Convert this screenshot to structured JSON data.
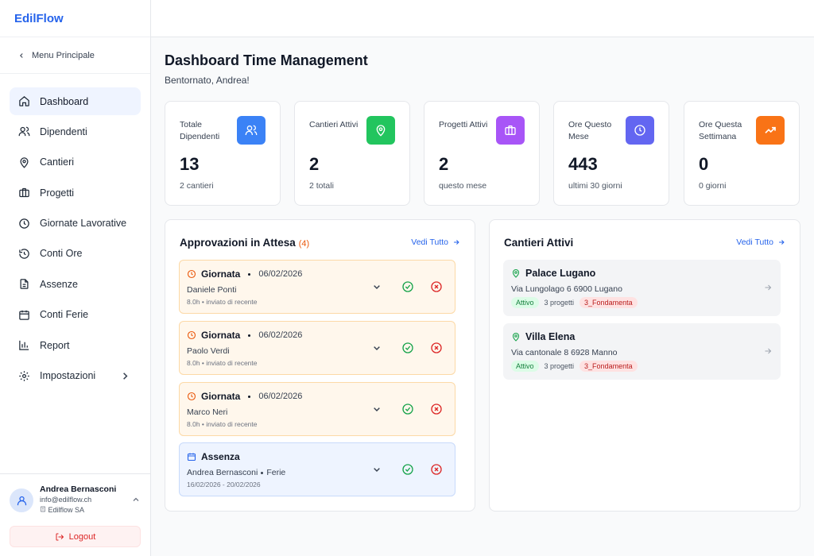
{
  "app": {
    "brand": "EdilFlow"
  },
  "sidebar": {
    "back_label": "Menu Principale",
    "items": [
      {
        "label": "Dashboard",
        "icon": "home-icon",
        "active": true
      },
      {
        "label": "Dipendenti",
        "icon": "users-icon"
      },
      {
        "label": "Cantieri",
        "icon": "map-pin-icon"
      },
      {
        "label": "Progetti",
        "icon": "briefcase-icon"
      },
      {
        "label": "Giornate Lavorative",
        "icon": "clock-icon"
      },
      {
        "label": "Conti Ore",
        "icon": "history-icon"
      },
      {
        "label": "Assenze",
        "icon": "file-text-icon"
      },
      {
        "label": "Conti Ferie",
        "icon": "calendar-icon"
      },
      {
        "label": "Report",
        "icon": "bar-chart-icon"
      },
      {
        "label": "Impostazioni",
        "icon": "gear-icon"
      }
    ],
    "user": {
      "name": "Andrea Bernasconi",
      "email": "info@edilflow.ch",
      "company": "Edilflow SA"
    },
    "logout_label": "Logout"
  },
  "header": {
    "title": "Dashboard Time Management",
    "subtitle": "Bentornato, Andrea!"
  },
  "stats": [
    {
      "label": "Totale Dipendenti",
      "value": "13",
      "sub": "2 cantieri",
      "color": "#3b82f6",
      "icon": "users-icon"
    },
    {
      "label": "Cantieri Attivi",
      "value": "2",
      "sub": "2 totali",
      "color": "#22c55e",
      "icon": "map-pin-icon"
    },
    {
      "label": "Progetti Attivi",
      "value": "2",
      "sub": "questo mese",
      "color": "#a855f7",
      "icon": "briefcase-icon"
    },
    {
      "label": "Ore Questo Mese",
      "value": "443",
      "sub": "ultimi 30 giorni",
      "color": "#6366f1",
      "icon": "clock-icon"
    },
    {
      "label": "Ore Questa Settimana",
      "value": "0",
      "sub": "0 giorni",
      "color": "#f97316",
      "icon": "trending-up-icon"
    }
  ],
  "approvals": {
    "title": "Approvazioni in Attesa",
    "count": "(4)",
    "see_all": "Vedi Tutto",
    "items": [
      {
        "type": "Giornata",
        "date": "06/02/2026",
        "name": "Daniele Ponti",
        "meta": "8.0h • inviato di recente"
      },
      {
        "type": "Giornata",
        "date": "06/02/2026",
        "name": "Paolo Verdi",
        "meta": "8.0h • inviato di recente"
      },
      {
        "type": "Giornata",
        "date": "06/02/2026",
        "name": "Marco Neri",
        "meta": "8.0h • inviato di recente"
      },
      {
        "type": "Assenza",
        "name": "Andrea Bernasconi",
        "kind": "Ferie",
        "meta": "16/02/2026 - 20/02/2026"
      }
    ]
  },
  "sites": {
    "title": "Cantieri Attivi",
    "see_all": "Vedi Tutto",
    "items": [
      {
        "name": "Palace Lugano",
        "address": "Via Lungolago 6 6900 Lugano",
        "status": "Attivo",
        "projects": "3 progetti",
        "phase": "3_Fondamenta"
      },
      {
        "name": "Villa Elena",
        "address": "Via cantonale 8 6928 Manno",
        "status": "Attivo",
        "projects": "3 progetti",
        "phase": "3_Fondamenta"
      }
    ]
  }
}
